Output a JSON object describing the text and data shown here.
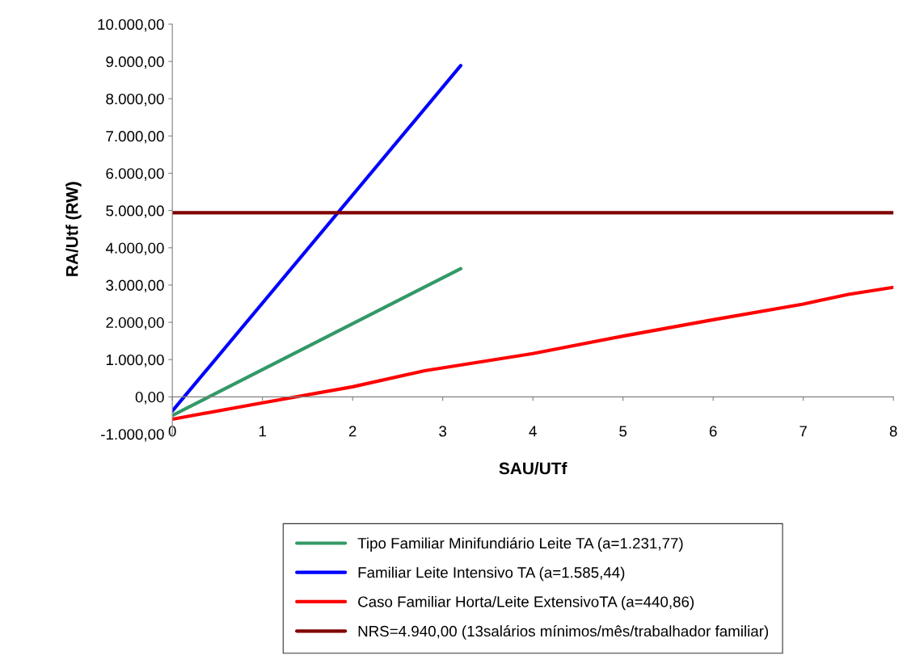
{
  "chart_data": {
    "type": "line",
    "xlabel": "SAU/UTf",
    "ylabel": "RA/Utf (RW)",
    "xlim": [
      0,
      8
    ],
    "xticks": [
      0,
      1,
      2,
      3,
      4,
      5,
      6,
      7,
      8
    ],
    "ylim": [
      -1000,
      10000
    ],
    "yticks": [
      {
        "value": -1000,
        "label": "-1.000,00"
      },
      {
        "value": 0,
        "label": "0,00"
      },
      {
        "value": 1000,
        "label": "1.000,00"
      },
      {
        "value": 2000,
        "label": "2.000,00"
      },
      {
        "value": 3000,
        "label": "3.000,00"
      },
      {
        "value": 4000,
        "label": "4.000,00"
      },
      {
        "value": 5000,
        "label": "5.000,00"
      },
      {
        "value": 6000,
        "label": "6.000,00"
      },
      {
        "value": 7000,
        "label": "7.000,00"
      },
      {
        "value": 8000,
        "label": "8.000,00"
      },
      {
        "value": 9000,
        "label": "9.000,00"
      },
      {
        "value": 10000,
        "label": "10.000,00"
      }
    ],
    "grid": false,
    "legend": "bottom",
    "marker": "none",
    "line_style": "solid",
    "series": [
      {
        "name": "Tipo Familiar Minifundiário Leite TA (a=1.231,77)",
        "color": "#339966",
        "x": [
          0,
          3.2
        ],
        "values": [
          -500,
          3440
        ]
      },
      {
        "name": "Familiar Leite Intensivo TA (a=1.585,44)",
        "color": "#0000ff",
        "x": [
          0,
          3.2
        ],
        "values": [
          -380,
          8890
        ]
      },
      {
        "name": "Caso Familiar Horta/Leite ExtensivoTA (a=440,86)",
        "color": "#ff0000",
        "x": [
          0,
          1,
          2,
          2.8,
          4,
          5,
          6,
          7,
          7.5,
          8
        ],
        "values": [
          -600,
          -160,
          270,
          700,
          1160,
          1630,
          2070,
          2490,
          2750,
          2940
        ]
      },
      {
        "name": "NRS=4.940,00 (13salários mínimos/mês/trabalhador familiar)",
        "color": "#800000",
        "x": [
          0,
          8
        ],
        "values": [
          4940,
          4940
        ]
      }
    ]
  }
}
